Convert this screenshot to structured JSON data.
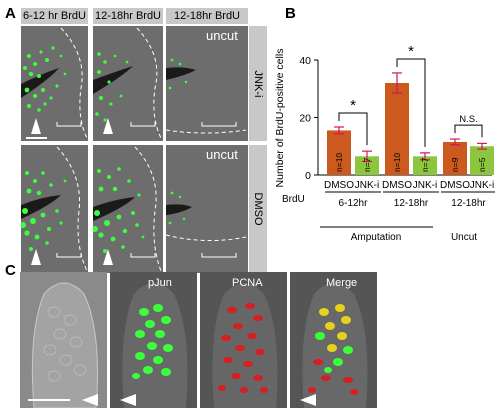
{
  "panel_a": {
    "letter": "A",
    "col_headers": [
      "6-12 hr BrdU",
      "12-18hr BrdU",
      "12-18hr BrdU"
    ],
    "row_labels": [
      "JNK-i",
      "DMSO"
    ],
    "uncut_label": "uncut"
  },
  "panel_b": {
    "letter": "B",
    "brdu_label": "BrdU",
    "amputation_label": "Amputation",
    "uncut_label": "Uncut"
  },
  "panel_c": {
    "letter": "C",
    "labels": [
      "pJun",
      "PCNA",
      "Merge"
    ]
  },
  "colors": {
    "dmso_bar": "#cc5a1e",
    "jnki_bar": "#8cc63f",
    "error": "#d4145a",
    "brdu_green": "#3cff3c"
  },
  "chart_data": {
    "type": "bar",
    "ylabel": "Number of BrdU-positive cells",
    "ylim": [
      0,
      40
    ],
    "yticks": [
      0,
      20,
      40
    ],
    "categories": [
      "DMSO",
      "JNK-i",
      "DMSO",
      "JNK-i",
      "DMSO",
      "JNK-i"
    ],
    "groups": [
      "6-12hr",
      "12-18hr",
      "12-18hr"
    ],
    "values": [
      15.5,
      6.5,
      32,
      6.5,
      11.5,
      10
    ],
    "errors": [
      1.2,
      1.8,
      3.5,
      1.2,
      1.0,
      1.0
    ],
    "n_labels": [
      "n=10",
      "n=7",
      "n=10",
      "n=7",
      "n=9",
      "n=5"
    ],
    "significance": [
      "*",
      "*",
      "N.S."
    ]
  }
}
